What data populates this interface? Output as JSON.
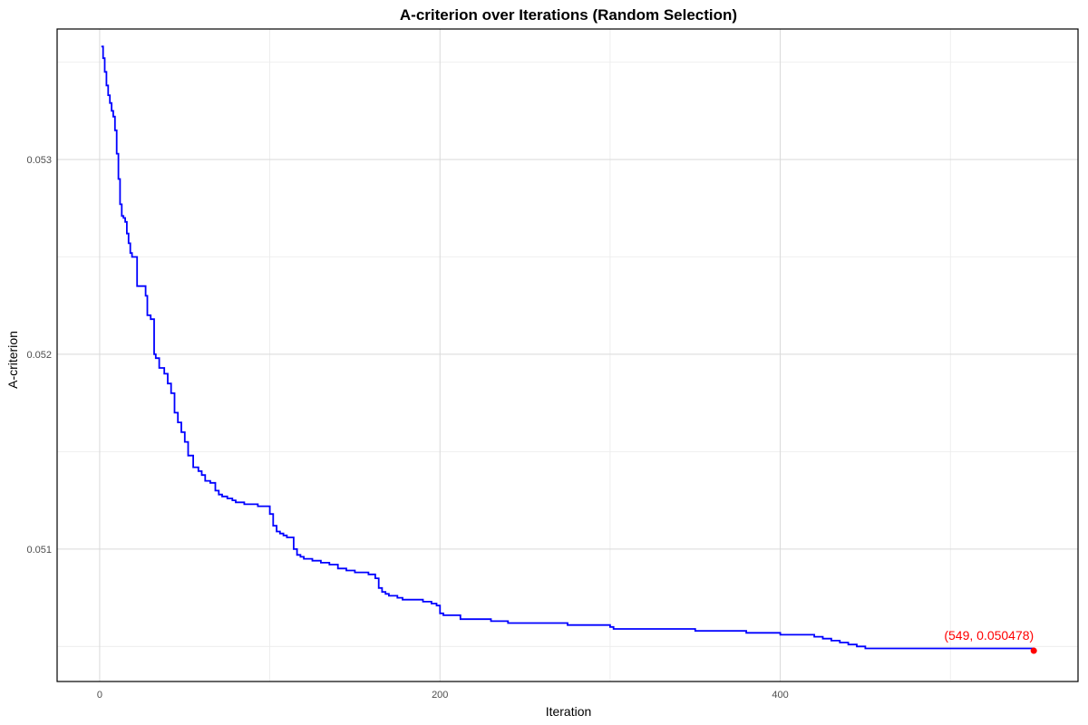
{
  "chart_data": {
    "type": "line",
    "title": "A-criterion over Iterations (Random Selection)",
    "xlabel": "Iteration",
    "ylabel": "A-criterion",
    "xlim": [
      -25,
      575
    ],
    "ylim": [
      0.05032,
      0.05367
    ],
    "x_ticks": [
      0,
      200,
      400
    ],
    "x_tick_labels": [
      "0",
      "200",
      "400"
    ],
    "y_ticks": [
      0.051,
      0.052,
      0.053
    ],
    "y_tick_labels": [
      "0.051",
      "0.052",
      "0.053"
    ],
    "grid": true,
    "legend": "none",
    "line_color": "#0000ff",
    "annotation_color": "#ff0000",
    "series": [
      {
        "x": [
          1,
          2,
          3,
          4,
          5,
          6,
          7,
          8,
          9,
          10,
          11,
          12,
          13,
          14,
          15,
          16,
          17,
          18,
          19,
          20,
          22,
          25,
          27,
          28,
          30,
          32,
          33,
          35,
          38,
          40,
          42,
          44,
          46,
          48,
          50,
          52,
          55,
          58,
          60,
          62,
          65,
          68,
          70,
          72,
          75,
          78,
          80,
          83,
          85,
          88,
          90,
          93,
          95,
          100,
          102,
          104,
          106,
          108,
          110,
          114,
          116,
          118,
          120,
          125,
          130,
          135,
          140,
          145,
          150,
          158,
          162,
          164,
          166,
          168,
          170,
          175,
          178,
          182,
          185,
          190,
          195,
          198,
          200,
          202,
          210,
          212,
          220,
          230,
          240,
          250,
          260,
          275,
          290,
          300,
          302,
          320,
          350,
          380,
          400,
          420,
          425,
          430,
          435,
          440,
          445,
          450,
          470,
          500,
          520,
          549
        ],
        "y": [
          0.05358,
          0.05352,
          0.05345,
          0.05338,
          0.05333,
          0.05329,
          0.05325,
          0.05322,
          0.05315,
          0.05303,
          0.0529,
          0.05277,
          0.05271,
          0.0527,
          0.05268,
          0.05262,
          0.05257,
          0.05252,
          0.0525,
          0.0525,
          0.05235,
          0.05235,
          0.0523,
          0.0522,
          0.05218,
          0.052,
          0.05198,
          0.05193,
          0.0519,
          0.05185,
          0.0518,
          0.0517,
          0.05165,
          0.0516,
          0.05155,
          0.05148,
          0.05142,
          0.0514,
          0.05138,
          0.05135,
          0.05134,
          0.0513,
          0.05128,
          0.05127,
          0.05126,
          0.05125,
          0.05124,
          0.05124,
          0.05123,
          0.05123,
          0.05123,
          0.05122,
          0.05122,
          0.05118,
          0.05112,
          0.05109,
          0.05108,
          0.05107,
          0.05106,
          0.051,
          0.05097,
          0.05096,
          0.05095,
          0.05094,
          0.05093,
          0.05092,
          0.0509,
          0.05089,
          0.05088,
          0.05087,
          0.05085,
          0.0508,
          0.05078,
          0.05077,
          0.05076,
          0.05075,
          0.05074,
          0.05074,
          0.05074,
          0.05073,
          0.05072,
          0.05071,
          0.05067,
          0.05066,
          0.05066,
          0.05064,
          0.05064,
          0.05063,
          0.05062,
          0.05062,
          0.05062,
          0.05061,
          0.05061,
          0.0506,
          0.05059,
          0.05059,
          0.05058,
          0.05057,
          0.05056,
          0.05055,
          0.05054,
          0.05053,
          0.05052,
          0.05051,
          0.0505,
          0.05049,
          0.05049,
          0.05049,
          0.05049,
          0.050478
        ]
      }
    ],
    "annotation": {
      "label": "(549, 0.050478)",
      "x": 549,
      "y": 0.050478
    }
  }
}
